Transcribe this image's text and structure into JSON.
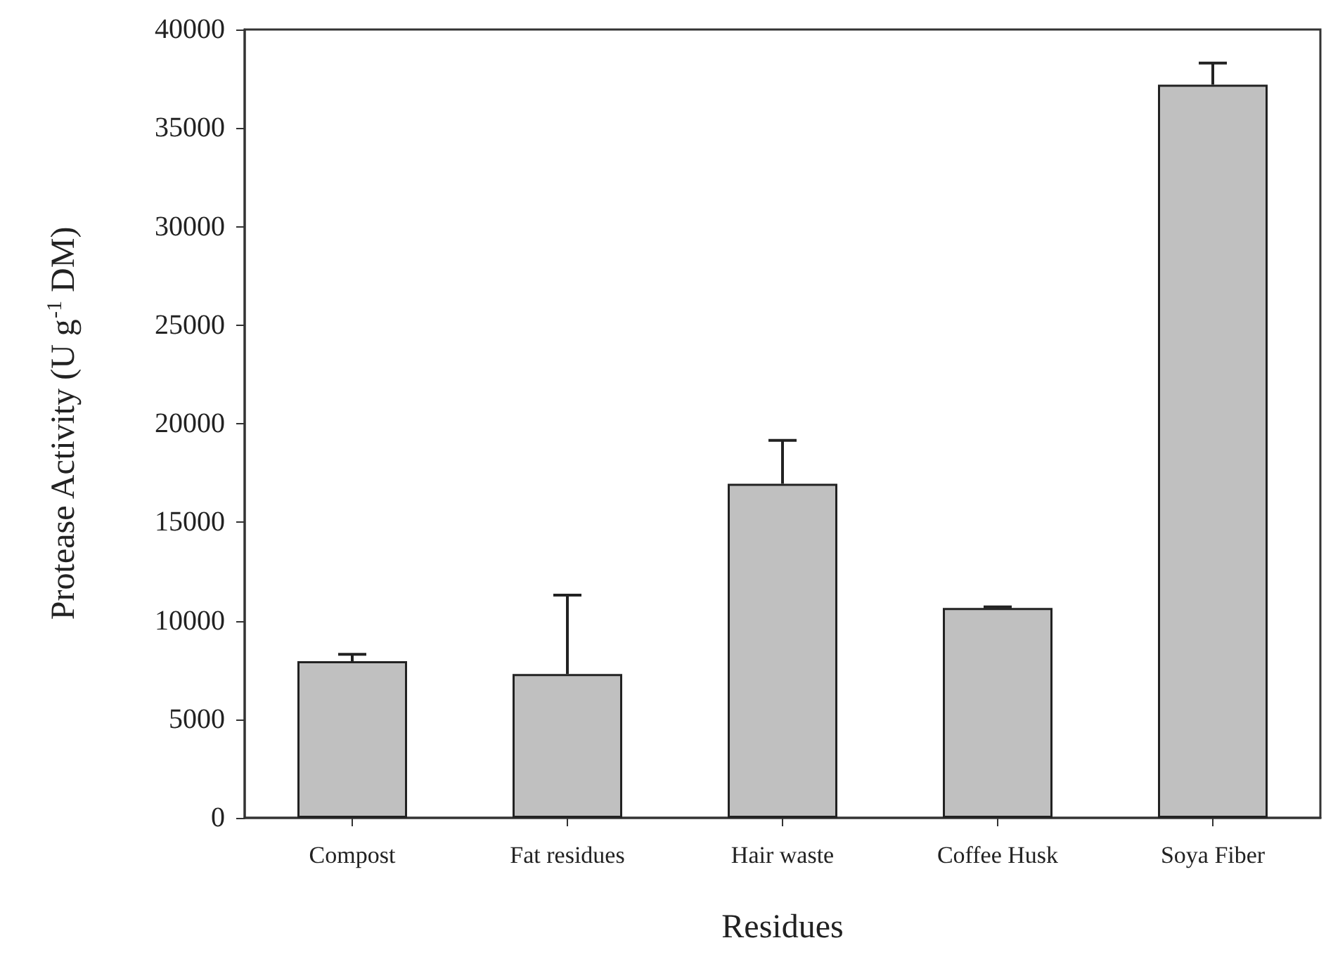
{
  "chart_data": {
    "type": "bar",
    "categories": [
      "Compost",
      "Fat residues",
      "Hair waste",
      "Coffee Husk",
      "Soya Fiber"
    ],
    "values": [
      7950,
      7300,
      16950,
      10650,
      37200
    ],
    "errors": [
      [
        7950,
        8300
      ],
      [
        7300,
        11300
      ],
      [
        16950,
        19150
      ],
      [
        10650,
        10700
      ],
      [
        37200,
        38300
      ]
    ],
    "color": "#c0c0c0",
    "xlabel": "Residues",
    "ylabel": "Protease Activity (U g$^{-1}$ DM)",
    "ylim": [
      0,
      40000
    ],
    "yticks": [
      0,
      5000,
      10000,
      15000,
      20000,
      25000,
      30000,
      35000,
      40000
    ],
    "grid": false
  }
}
